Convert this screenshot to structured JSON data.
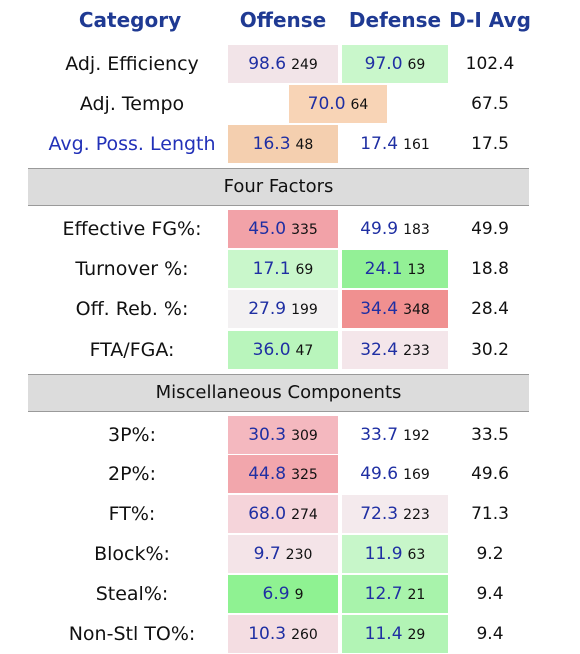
{
  "header": {
    "category": "Category",
    "offense": "Offense",
    "defense": "Defense",
    "avg": "D-I Avg"
  },
  "rows_top": [
    {
      "label": "Adj. Efficiency",
      "off": "98.6",
      "off_rank": "249",
      "off_color": "#f2e4e8",
      "def": "97.0",
      "def_rank": "69",
      "def_color": "#c9f7cb",
      "avg": "102.4"
    },
    {
      "label": "Adj. Tempo",
      "tempo": "70.0",
      "tempo_rank": "64",
      "tempo_color": "#f8d4b6",
      "avg": "67.5"
    },
    {
      "label": "Avg. Poss. Length",
      "off": "16.3",
      "off_rank": "48",
      "off_color": "#f4cfaf",
      "def": "17.4",
      "def_rank": "161",
      "def_color": "#ffffff",
      "avg": "17.5"
    }
  ],
  "sections": {
    "four_factors": "Four Factors",
    "misc": "Miscellaneous Components"
  },
  "four_factors": [
    {
      "label": "Effective FG%:",
      "off": "45.0",
      "off_rank": "335",
      "off_color": "#f2a2a8",
      "def": "49.9",
      "def_rank": "183",
      "def_color": "#ffffff",
      "avg": "49.9"
    },
    {
      "label": "Turnover %:",
      "off": "17.1",
      "off_rank": "69",
      "off_color": "#c9f7cb",
      "def": "24.1",
      "def_rank": "13",
      "def_color": "#93f096",
      "avg": "18.8"
    },
    {
      "label": "Off. Reb. %:",
      "off": "27.9",
      "off_rank": "199",
      "off_color": "#f3f1f2",
      "def": "34.4",
      "def_rank": "348",
      "def_color": "#f09090",
      "avg": "28.4"
    },
    {
      "label": "FTA/FGA:",
      "off": "36.0",
      "off_rank": "47",
      "off_color": "#b9f5bc",
      "def": "32.4",
      "def_rank": "233",
      "def_color": "#f4e6ea",
      "avg": "30.2"
    }
  ],
  "misc": [
    {
      "label": "3P%:",
      "off": "30.3",
      "off_rank": "309",
      "off_color": "#f4b8bf",
      "def": "33.7",
      "def_rank": "192",
      "def_color": "#ffffff",
      "avg": "33.5"
    },
    {
      "label": "2P%:",
      "off": "44.8",
      "off_rank": "325",
      "off_color": "#f2a6ac",
      "def": "49.6",
      "def_rank": "169",
      "def_color": "#ffffff",
      "avg": "49.6"
    },
    {
      "label": "FT%:",
      "off": "68.0",
      "off_rank": "274",
      "off_color": "#f5d4da",
      "def": "72.3",
      "def_rank": "223",
      "def_color": "#f4eaed",
      "avg": "71.3"
    },
    {
      "label": "Block%:",
      "off": "9.7",
      "off_rank": "230",
      "off_color": "#f4e4e8",
      "def": "11.9",
      "def_rank": "63",
      "def_color": "#c7f6c9",
      "avg": "9.2"
    },
    {
      "label": "Steal%:",
      "off": "6.9",
      "off_rank": "9",
      "off_color": "#8ff292",
      "def": "12.7",
      "def_rank": "21",
      "def_color": "#a8f3ab",
      "avg": "9.4"
    },
    {
      "label": "Non-Stl TO%:",
      "off": "10.3",
      "off_rank": "260",
      "off_color": "#f4dde2",
      "def": "11.4",
      "def_rank": "29",
      "def_color": "#b2f4b5",
      "avg": "9.4"
    }
  ]
}
